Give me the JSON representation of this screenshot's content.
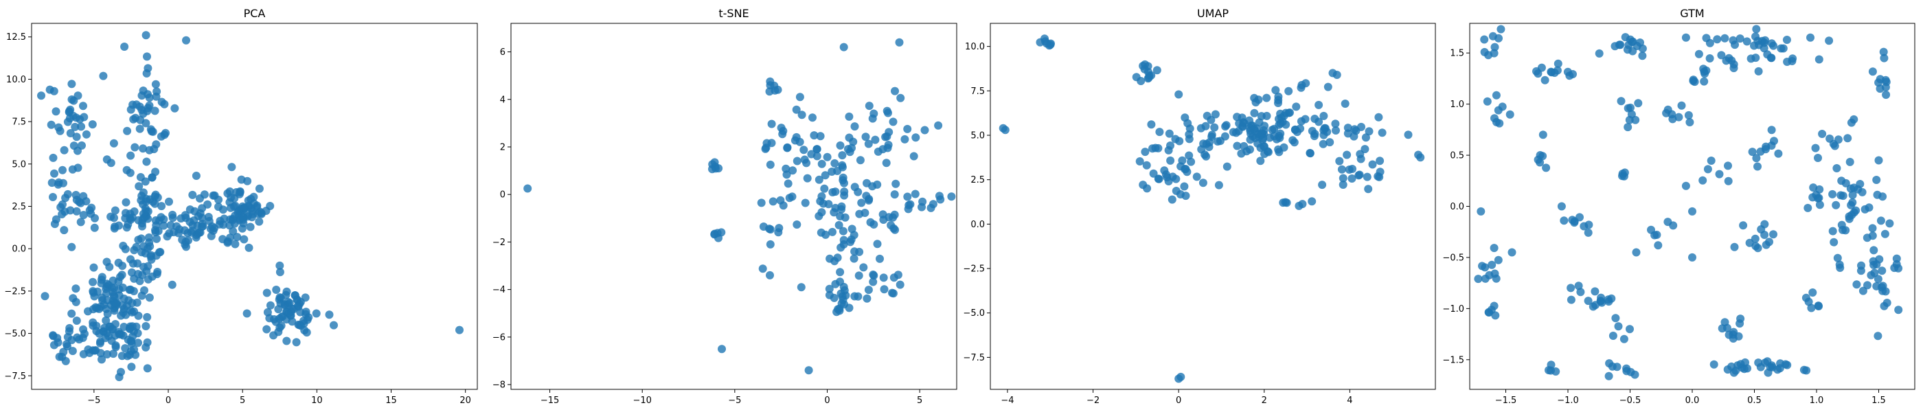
{
  "chart_data": [
    {
      "type": "scatter",
      "title": "PCA",
      "xlabel": "",
      "ylabel": "",
      "xlim": [
        -9.2,
        20.8
      ],
      "ylim": [
        -8.3,
        13.3
      ],
      "xticks": [
        -5,
        0,
        5,
        10,
        15,
        20
      ],
      "yticks": [
        -7.5,
        -5.0,
        -2.5,
        0.0,
        2.5,
        5.0,
        7.5,
        10.0,
        12.5
      ],
      "clusters": [
        {
          "cx": -3.6,
          "cy": -3.6,
          "sx": 1.2,
          "sy": 1.9,
          "n": 150
        },
        {
          "cx": -1.4,
          "cy": -0.6,
          "sx": 0.6,
          "sy": 1.0,
          "n": 25
        },
        {
          "cx": -6.5,
          "cy": -5.4,
          "sx": 1.1,
          "sy": 0.8,
          "n": 25
        },
        {
          "cx": -1.4,
          "cy": 1.8,
          "sx": 1.0,
          "sy": 0.8,
          "n": 55
        },
        {
          "cx": 2.0,
          "cy": 1.3,
          "sx": 1.2,
          "sy": 0.6,
          "n": 45
        },
        {
          "cx": 4.8,
          "cy": 2.2,
          "sx": 1.1,
          "sy": 1.0,
          "n": 75
        },
        {
          "cx": -6.2,
          "cy": 3.3,
          "sx": 1.0,
          "sy": 1.3,
          "n": 35
        },
        {
          "cx": -6.5,
          "cy": 7.3,
          "sx": 0.8,
          "sy": 1.1,
          "n": 30
        },
        {
          "cx": -1.4,
          "cy": 8.6,
          "sx": 1.1,
          "sy": 1.5,
          "n": 40
        },
        {
          "cx": -2.0,
          "cy": 4.6,
          "sx": 0.9,
          "sy": 0.9,
          "n": 15
        },
        {
          "cx": 8.2,
          "cy": -3.8,
          "sx": 1.0,
          "sy": 0.8,
          "n": 65
        },
        {
          "cx": 2.5,
          "cy": 3.3,
          "sx": 0.8,
          "sy": 0.6,
          "n": 8
        }
      ],
      "extra_points": [
        [
          19.6,
          -4.8
        ],
        [
          -8.3,
          -2.8
        ],
        [
          1.2,
          12.3
        ],
        [
          -1.5,
          12.6
        ],
        [
          7.5,
          -1.0
        ]
      ],
      "color": "#1f77b4"
    },
    {
      "type": "scatter",
      "title": "t-SNE",
      "xlabel": "",
      "ylabel": "",
      "xlim": [
        -17.1,
        7.0
      ],
      "ylim": [
        -8.2,
        7.2
      ],
      "xticks": [
        -15,
        -10,
        -5,
        0,
        5
      ],
      "yticks": [
        -8,
        -6,
        -4,
        -2,
        0,
        2,
        4,
        6
      ],
      "clusters": [
        {
          "cx": 0.6,
          "cy": 0.3,
          "sx": 0.9,
          "sy": 1.0,
          "n": 50
        },
        {
          "cx": 1.2,
          "cy": -2.8,
          "sx": 0.6,
          "sy": 0.8,
          "n": 25
        },
        {
          "cx": 0.7,
          "cy": -4.7,
          "sx": 0.4,
          "sy": 0.4,
          "n": 15
        },
        {
          "cx": 2.6,
          "cy": 2.8,
          "sx": 0.9,
          "sy": 1.0,
          "n": 25
        },
        {
          "cx": -1.4,
          "cy": 2.3,
          "sx": 0.6,
          "sy": 0.8,
          "n": 20
        },
        {
          "cx": -2.4,
          "cy": 0.6,
          "sx": 0.7,
          "sy": 1.5,
          "n": 20
        },
        {
          "cx": 5.3,
          "cy": -0.2,
          "sx": 0.5,
          "sy": 0.4,
          "n": 12
        },
        {
          "cx": 3.3,
          "cy": -3.5,
          "sx": 0.4,
          "sy": 0.5,
          "n": 10
        },
        {
          "cx": 3.1,
          "cy": -0.8,
          "sx": 0.7,
          "sy": 0.7,
          "n": 15
        },
        {
          "cx": -2.9,
          "cy": 4.6,
          "sx": 0.2,
          "sy": 0.2,
          "n": 6
        },
        {
          "cx": -6.1,
          "cy": 1.2,
          "sx": 0.2,
          "sy": 0.1,
          "n": 6
        },
        {
          "cx": -5.9,
          "cy": -1.8,
          "sx": 0.2,
          "sy": 0.1,
          "n": 5
        },
        {
          "cx": -3.0,
          "cy": -1.4,
          "sx": 0.3,
          "sy": 0.1,
          "n": 5
        },
        {
          "cx": 4.6,
          "cy": 2.5,
          "sx": 0.3,
          "sy": 0.2,
          "n": 4
        }
      ],
      "extra_points": [
        [
          -16.2,
          0.25
        ],
        [
          -5.7,
          -6.5
        ],
        [
          -1.0,
          -7.4
        ],
        [
          0.9,
          6.2
        ],
        [
          3.9,
          6.4
        ],
        [
          6.0,
          2.9
        ],
        [
          -3.1,
          -3.4
        ],
        [
          -1.4,
          -3.9
        ]
      ],
      "color": "#1f77b4"
    },
    {
      "type": "scatter",
      "title": "UMAP",
      "xlabel": "",
      "ylabel": "",
      "xlim": [
        -4.4,
        6.0
      ],
      "ylim": [
        -9.3,
        11.3
      ],
      "xticks": [
        -4,
        -2,
        0,
        2,
        4
      ],
      "yticks": [
        -7.5,
        -5.0,
        -2.5,
        0.0,
        2.5,
        5.0,
        7.5,
        10.0
      ],
      "clusters": [
        {
          "cx": 2.0,
          "cy": 5.2,
          "sx": 0.9,
          "sy": 0.7,
          "n": 110
        },
        {
          "cx": 0.2,
          "cy": 4.6,
          "sx": 0.5,
          "sy": 0.8,
          "n": 25
        },
        {
          "cx": -0.1,
          "cy": 2.3,
          "sx": 0.4,
          "sy": 0.8,
          "n": 25
        },
        {
          "cx": 4.1,
          "cy": 2.9,
          "sx": 0.4,
          "sy": 0.6,
          "n": 20
        },
        {
          "cx": 4.2,
          "cy": 5.3,
          "sx": 0.4,
          "sy": 0.4,
          "n": 15
        },
        {
          "cx": 2.5,
          "cy": 7.0,
          "sx": 0.5,
          "sy": 0.4,
          "n": 15
        },
        {
          "cx": -0.6,
          "cy": 8.6,
          "sx": 0.3,
          "sy": 0.4,
          "n": 12
        },
        {
          "cx": -3.2,
          "cy": 10.2,
          "sx": 0.1,
          "sy": 0.1,
          "n": 7
        },
        {
          "cx": 2.6,
          "cy": 1.1,
          "sx": 0.2,
          "sy": 0.2,
          "n": 6
        }
      ],
      "extra_points": [
        [
          -4.1,
          5.4
        ],
        [
          -4.05,
          5.3
        ],
        [
          5.6,
          3.9
        ],
        [
          5.65,
          3.75
        ],
        [
          0.0,
          -8.7
        ],
        [
          0.05,
          -8.6
        ],
        [
          0.0,
          7.3
        ],
        [
          3.6,
          8.5
        ],
        [
          3.7,
          8.4
        ]
      ],
      "color": "#1f77b4"
    },
    {
      "type": "scatter",
      "title": "GTM",
      "xlabel": "",
      "ylabel": "",
      "xlim": [
        -1.79,
        1.79
      ],
      "ylim": [
        -1.79,
        1.79
      ],
      "xticks": [
        -1.5,
        -1.0,
        -0.5,
        0.0,
        0.5,
        1.0,
        1.5
      ],
      "yticks": [
        -1.5,
        -1.0,
        -0.5,
        0.0,
        0.5,
        1.0,
        1.5
      ],
      "clusters": [
        {
          "cx": 0.5,
          "cy": 1.5,
          "sx": 0.25,
          "sy": 0.12,
          "n": 40
        },
        {
          "cx": 1.35,
          "cy": 0.1,
          "sx": 0.1,
          "sy": 0.15,
          "n": 30
        },
        {
          "cx": 1.5,
          "cy": -0.7,
          "sx": 0.08,
          "sy": 0.25,
          "n": 30
        },
        {
          "cx": 0.5,
          "cy": -1.57,
          "sx": 0.2,
          "sy": 0.04,
          "n": 25
        },
        {
          "cx": -0.8,
          "cy": -0.9,
          "sx": 0.08,
          "sy": 0.06,
          "n": 15
        },
        {
          "cx": -0.5,
          "cy": 1.58,
          "sx": 0.1,
          "sy": 0.05,
          "n": 15
        },
        {
          "cx": -1.1,
          "cy": 1.33,
          "sx": 0.1,
          "sy": 0.04,
          "n": 12
        },
        {
          "cx": 0.5,
          "cy": -0.32,
          "sx": 0.08,
          "sy": 0.06,
          "n": 12
        },
        {
          "cx": -1.6,
          "cy": -0.55,
          "sx": 0.06,
          "sy": 0.1,
          "n": 10
        },
        {
          "cx": 1.55,
          "cy": 1.25,
          "sx": 0.05,
          "sy": 0.1,
          "n": 10
        },
        {
          "cx": 1.15,
          "cy": 0.6,
          "sx": 0.1,
          "sy": 0.15,
          "n": 10
        },
        {
          "cx": 0.3,
          "cy": -1.2,
          "sx": 0.06,
          "sy": 0.1,
          "n": 10
        },
        {
          "cx": 0.6,
          "cy": 0.55,
          "sx": 0.08,
          "sy": 0.1,
          "n": 10
        },
        {
          "cx": -1.6,
          "cy": 1.6,
          "sx": 0.04,
          "sy": 0.08,
          "n": 8
        },
        {
          "cx": -1.57,
          "cy": 0.9,
          "sx": 0.04,
          "sy": 0.08,
          "n": 8
        },
        {
          "cx": -0.5,
          "cy": 0.9,
          "sx": 0.05,
          "sy": 0.08,
          "n": 8
        },
        {
          "cx": -0.95,
          "cy": -0.15,
          "sx": 0.08,
          "sy": 0.06,
          "n": 8
        },
        {
          "cx": -0.1,
          "cy": 0.9,
          "sx": 0.08,
          "sy": 0.08,
          "n": 8
        },
        {
          "cx": -0.5,
          "cy": -1.6,
          "sx": 0.1,
          "sy": 0.03,
          "n": 8
        },
        {
          "cx": 1.0,
          "cy": 0.1,
          "sx": 0.05,
          "sy": 0.1,
          "n": 8
        },
        {
          "cx": 0.05,
          "cy": 1.25,
          "sx": 0.06,
          "sy": 0.06,
          "n": 8
        },
        {
          "cx": 0.2,
          "cy": 0.35,
          "sx": 0.06,
          "sy": 0.06,
          "n": 6
        },
        {
          "cx": -0.25,
          "cy": -0.2,
          "sx": 0.05,
          "sy": 0.06,
          "n": 6
        },
        {
          "cx": -1.6,
          "cy": -1.05,
          "sx": 0.03,
          "sy": 0.05,
          "n": 5
        },
        {
          "cx": -0.55,
          "cy": 0.3,
          "sx": 0.03,
          "sy": 0.03,
          "n": 4
        },
        {
          "cx": -0.6,
          "cy": -1.25,
          "sx": 0.05,
          "sy": 0.05,
          "n": 5
        },
        {
          "cx": 0.95,
          "cy": -1.0,
          "sx": 0.04,
          "sy": 0.08,
          "n": 6
        },
        {
          "cx": -1.2,
          "cy": 0.45,
          "sx": 0.05,
          "sy": 0.05,
          "n": 5
        },
        {
          "cx": 1.2,
          "cy": -0.5,
          "sx": 0.05,
          "sy": 0.08,
          "n": 5
        },
        {
          "cx": -1.15,
          "cy": -1.6,
          "sx": 0.03,
          "sy": 0.03,
          "n": 4
        }
      ],
      "extra_points": [
        [
          -1.7,
          -0.05
        ],
        [
          -1.2,
          0.7
        ],
        [
          -1.45,
          -0.45
        ],
        [
          0.0,
          -0.5
        ],
        [
          -0.05,
          1.65
        ],
        [
          0.95,
          1.65
        ],
        [
          1.1,
          1.62
        ],
        [
          0.9,
          -1.6
        ],
        [
          -1.05,
          0.0
        ],
        [
          -0.45,
          -0.45
        ],
        [
          -0.05,
          0.2
        ],
        [
          0.0,
          -0.05
        ],
        [
          1.2,
          0.25
        ],
        [
          1.5,
          0.45
        ],
        [
          1.3,
          0.85
        ]
      ],
      "color": "#1f77b4"
    }
  ]
}
